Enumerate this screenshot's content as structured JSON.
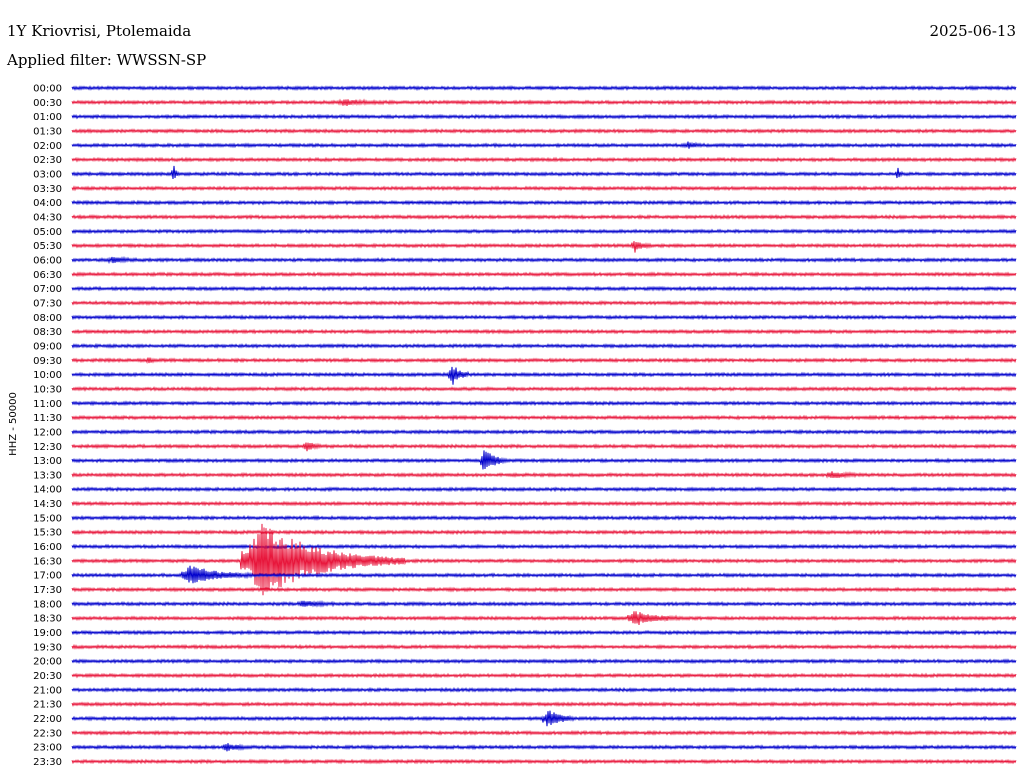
{
  "header": {
    "station": "1Y Kriovrisi, Ptolemaida",
    "date": "2025-06-13",
    "filter": "Applied filter: WWSSN-SP"
  },
  "chart_data": {
    "type": "line",
    "ylabel": "HHZ - 50000",
    "time_labels": [
      "00:00",
      "00:30",
      "01:00",
      "01:30",
      "02:00",
      "02:30",
      "03:00",
      "03:30",
      "04:00",
      "04:30",
      "05:00",
      "05:30",
      "06:00",
      "06:30",
      "07:00",
      "07:30",
      "08:00",
      "08:30",
      "09:00",
      "09:30",
      "10:00",
      "10:30",
      "11:00",
      "11:30",
      "12:00",
      "12:30",
      "13:00",
      "13:30",
      "14:00",
      "14:30",
      "15:00",
      "15:30",
      "16:00",
      "16:30",
      "17:00",
      "17:30",
      "18:00",
      "18:30",
      "19:00",
      "19:30",
      "20:00",
      "20:30",
      "21:00",
      "21:30",
      "22:00",
      "22:30",
      "23:00",
      "23:30"
    ],
    "colors": {
      "even": "#0000cc",
      "odd": "#e8173c"
    },
    "x_range_minutes": [
      0,
      30
    ],
    "events": [
      {
        "line": "00:30",
        "minute": 8.5,
        "amp": 3,
        "dur": 1.4
      },
      {
        "line": "02:00",
        "minute": 19.5,
        "amp": 3,
        "dur": 0.6
      },
      {
        "line": "03:00",
        "minute": 3.2,
        "amp": 9,
        "dur": 0.2
      },
      {
        "line": "03:00",
        "minute": 26.2,
        "amp": 8,
        "dur": 0.2
      },
      {
        "line": "05:30",
        "minute": 17.8,
        "amp": 7,
        "dur": 0.6
      },
      {
        "line": "06:00",
        "minute": 1.2,
        "amp": 3,
        "dur": 0.9
      },
      {
        "line": "09:30",
        "minute": 2.4,
        "amp": 4,
        "dur": 0.2
      },
      {
        "line": "10:00",
        "minute": 12.0,
        "amp": 12,
        "dur": 0.6
      },
      {
        "line": "12:30",
        "minute": 7.4,
        "amp": 6,
        "dur": 0.5
      },
      {
        "line": "13:00",
        "minute": 13.0,
        "amp": 14,
        "dur": 0.8
      },
      {
        "line": "13:30",
        "minute": 24.0,
        "amp": 3,
        "dur": 1.2
      },
      {
        "line": "16:30",
        "minute": 5.4,
        "amp": 38,
        "dur": 5.2
      },
      {
        "line": "17:00",
        "minute": 3.5,
        "amp": 10,
        "dur": 2.2
      },
      {
        "line": "18:00",
        "minute": 7.2,
        "amp": 3,
        "dur": 1.2
      },
      {
        "line": "18:30",
        "minute": 17.7,
        "amp": 8,
        "dur": 1.6
      },
      {
        "line": "22:00",
        "minute": 15.0,
        "amp": 10,
        "dur": 1.0
      },
      {
        "line": "23:00",
        "minute": 4.8,
        "amp": 4,
        "dur": 0.9
      }
    ]
  }
}
